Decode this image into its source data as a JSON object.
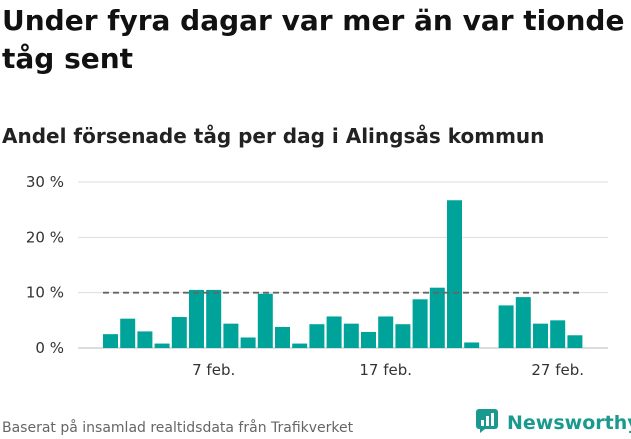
{
  "title": "Under fyra dagar var mer än var tionde tåg sent",
  "subtitle": "Andel försenade tåg per dag i Alingsås kommun",
  "footer": "Baserat på insamlad realtidsdata från Trafikverket",
  "brand": {
    "name": "Newsworthy",
    "icon": "newsworthy-logo-icon",
    "color": "#1a9a8f"
  },
  "colors": {
    "bar": "#00a39a",
    "reference_line": "#666666",
    "grid": "#dddddd"
  },
  "chart_data": {
    "type": "bar",
    "categories": [
      "1 feb.",
      "2 feb.",
      "3 feb.",
      "4 feb.",
      "5 feb.",
      "6 feb.",
      "7 feb.",
      "8 feb.",
      "9 feb.",
      "10 feb.",
      "11 feb.",
      "12 feb.",
      "13 feb.",
      "14 feb.",
      "15 feb.",
      "16 feb.",
      "17 feb.",
      "18 feb.",
      "19 feb.",
      "20 feb.",
      "21 feb.",
      "22 feb.",
      "23 feb.",
      "24 feb.",
      "25 feb.",
      "26 feb.",
      "27 feb.",
      "28 feb."
    ],
    "values": [
      2.5,
      5.3,
      3.0,
      0.8,
      5.6,
      10.5,
      10.5,
      4.4,
      1.9,
      9.8,
      3.8,
      0.8,
      4.3,
      5.7,
      4.4,
      2.9,
      5.7,
      4.3,
      8.8,
      10.9,
      26.7,
      1.0,
      null,
      7.7,
      9.2,
      4.4,
      5.0,
      2.3
    ],
    "reference_value": 10,
    "ylim": [
      0,
      30
    ],
    "yticks": [
      0,
      10,
      20,
      30
    ],
    "ytick_labels": [
      "0 %",
      "10 %",
      "20 %",
      "30 %"
    ],
    "xticks": [
      "7 feb.",
      "17 feb.",
      "27 feb."
    ],
    "grid": true,
    "xlabel": "",
    "ylabel": ""
  }
}
